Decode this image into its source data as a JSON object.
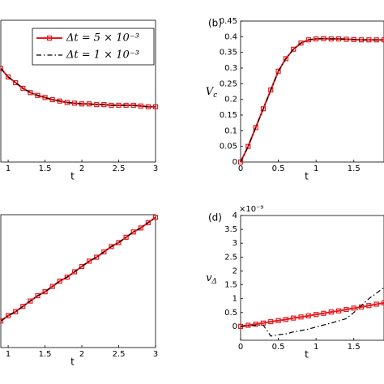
{
  "chart_data": [
    {
      "type": "line",
      "xlabel": "t",
      "xlim": [
        0.9,
        3
      ],
      "xticks": [
        1,
        1.5,
        2,
        2.5,
        3
      ],
      "ylim": [
        0,
        1
      ],
      "legend": "top-right",
      "x": [
        0.9,
        1.0,
        1.1,
        1.2,
        1.3,
        1.4,
        1.5,
        1.6,
        1.7,
        1.8,
        1.9,
        2.0,
        2.1,
        2.2,
        2.3,
        2.4,
        2.5,
        2.6,
        2.7,
        2.8,
        2.9,
        3.0
      ],
      "series": [
        {
          "name": "Δt = 5 × 10⁻³",
          "color": "#e8191d",
          "style": "markers",
          "values": [
            0.66,
            0.6,
            0.56,
            0.52,
            0.49,
            0.47,
            0.455,
            0.44,
            0.43,
            0.42,
            0.415,
            0.41,
            0.41,
            0.405,
            0.405,
            0.4,
            0.4,
            0.4,
            0.4,
            0.395,
            0.39,
            0.39
          ]
        },
        {
          "name": "Δt = 1 × 10⁻³",
          "color": "#000000",
          "style": "dashdot",
          "values": [
            0.66,
            0.6,
            0.56,
            0.52,
            0.49,
            0.47,
            0.455,
            0.44,
            0.43,
            0.42,
            0.415,
            0.41,
            0.41,
            0.405,
            0.405,
            0.4,
            0.4,
            0.4,
            0.4,
            0.395,
            0.39,
            0.39
          ]
        }
      ]
    },
    {
      "type": "line",
      "panel_label": "(b)",
      "xlabel": "t",
      "ylabel": "V",
      "ylabel_sub": "c",
      "xlim": [
        0,
        1.9
      ],
      "xticks": [
        0,
        0.5,
        1,
        1.5
      ],
      "ylim": [
        0,
        0.45
      ],
      "yticks": [
        0,
        0.05,
        0.1,
        0.15,
        0.2,
        0.25,
        0.3,
        0.35,
        0.4,
        0.45
      ],
      "x": [
        0,
        0.1,
        0.2,
        0.3,
        0.4,
        0.5,
        0.6,
        0.7,
        0.8,
        0.9,
        1.0,
        1.1,
        1.2,
        1.3,
        1.4,
        1.5,
        1.6,
        1.7,
        1.8,
        1.9
      ],
      "series": [
        {
          "color": "#e8191d",
          "style": "markers",
          "values": [
            0,
            0.05,
            0.11,
            0.17,
            0.23,
            0.29,
            0.33,
            0.36,
            0.38,
            0.39,
            0.393,
            0.394,
            0.393,
            0.393,
            0.392,
            0.391,
            0.39,
            0.39,
            0.39,
            0.39
          ]
        },
        {
          "color": "#000000",
          "style": "dashdot",
          "values": [
            0,
            0.05,
            0.11,
            0.17,
            0.23,
            0.29,
            0.33,
            0.36,
            0.38,
            0.39,
            0.393,
            0.394,
            0.393,
            0.393,
            0.392,
            0.391,
            0.39,
            0.39,
            0.39,
            0.39
          ]
        }
      ]
    },
    {
      "type": "line",
      "xlabel": "t",
      "xlim": [
        0.9,
        3
      ],
      "xticks": [
        1,
        1.5,
        2,
        2.5,
        3
      ],
      "ylim": [
        0,
        1
      ],
      "x": [
        0.9,
        1.0,
        1.1,
        1.2,
        1.3,
        1.4,
        1.5,
        1.6,
        1.7,
        1.8,
        1.9,
        2.0,
        2.1,
        2.2,
        2.3,
        2.4,
        2.5,
        2.6,
        2.7,
        2.8,
        2.9,
        3.0
      ],
      "series": [
        {
          "color": "#e8191d",
          "style": "markers",
          "values": [
            0.2,
            0.24,
            0.27,
            0.31,
            0.35,
            0.39,
            0.42,
            0.46,
            0.5,
            0.53,
            0.57,
            0.61,
            0.65,
            0.68,
            0.72,
            0.76,
            0.79,
            0.83,
            0.87,
            0.9,
            0.94,
            0.98
          ]
        },
        {
          "color": "#000000",
          "style": "dashdot",
          "values": [
            0.2,
            0.24,
            0.27,
            0.31,
            0.35,
            0.39,
            0.42,
            0.46,
            0.5,
            0.53,
            0.57,
            0.61,
            0.65,
            0.68,
            0.72,
            0.76,
            0.79,
            0.83,
            0.87,
            0.9,
            0.94,
            0.98
          ]
        }
      ]
    },
    {
      "type": "line",
      "panel_label": "(d)",
      "xlabel": "t",
      "ylabel": "v",
      "ylabel_sub": "Δ",
      "y_multiplier": "×10⁻⁹",
      "xlim": [
        0,
        1.9
      ],
      "xticks": [
        0,
        0.5,
        1,
        1.5
      ],
      "ylim": [
        -0.5,
        4
      ],
      "yticks": [
        0,
        0.5,
        1,
        1.5,
        2,
        2.5,
        3,
        3.5,
        4
      ],
      "x": [
        0,
        0.1,
        0.2,
        0.3,
        0.4,
        0.5,
        0.6,
        0.7,
        0.8,
        0.9,
        1.0,
        1.1,
        1.2,
        1.3,
        1.4,
        1.5,
        1.6,
        1.7,
        1.8,
        1.9
      ],
      "series": [
        {
          "color": "#e8191d",
          "style": "markers",
          "values": [
            0,
            0.04,
            0.08,
            0.12,
            0.17,
            0.21,
            0.25,
            0.3,
            0.34,
            0.38,
            0.43,
            0.47,
            0.52,
            0.56,
            0.61,
            0.66,
            0.7,
            0.75,
            0.8,
            0.85
          ]
        },
        {
          "color": "#000000",
          "style": "dashdot",
          "values": [
            0,
            0.02,
            0.04,
            0.05,
            -0.35,
            -0.3,
            -0.27,
            -0.2,
            -0.15,
            -0.1,
            -0.02,
            0.05,
            0.12,
            0.2,
            0.28,
            0.5,
            0.75,
            1.0,
            1.2,
            1.4
          ]
        }
      ]
    }
  ]
}
